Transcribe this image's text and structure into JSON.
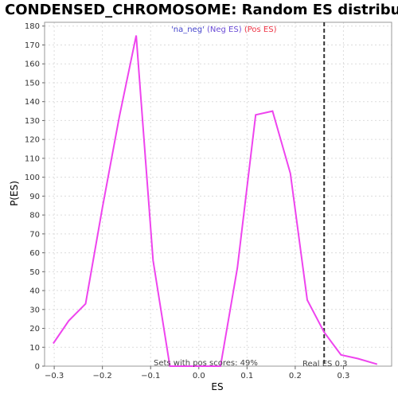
{
  "chart_data": {
    "type": "line",
    "title": "CONDENSED_CHROMOSOME: Random ES distribution",
    "xlabel": "ES",
    "ylabel": "P(ES)",
    "xlim": [
      -0.32,
      0.4
    ],
    "ylim": [
      0,
      182
    ],
    "xticks": [
      -0.3,
      -0.2,
      -0.1,
      0.0,
      0.1,
      0.2,
      0.3
    ],
    "xtick_labels": [
      "−0.3",
      "−0.2",
      "−0.1",
      "0.0",
      "0.1",
      "0.2",
      "0.3"
    ],
    "yticks": [
      0,
      10,
      20,
      30,
      40,
      50,
      60,
      70,
      80,
      90,
      100,
      110,
      120,
      130,
      140,
      150,
      160,
      170,
      180
    ],
    "grid": true,
    "legend": {
      "placement": "top-center",
      "entries": [
        {
          "label": "'na_neg'",
          "color": "#4444cc"
        },
        {
          "label": "(Neg ES)",
          "color": "#6a4bd6"
        },
        {
          "label": "(Pos ES)",
          "color": "#ee3344"
        }
      ]
    },
    "series": [
      {
        "color": "#ee44ee",
        "x": [
          -0.302,
          -0.27,
          -0.235,
          -0.2,
          -0.165,
          -0.13,
          -0.095,
          -0.06,
          -0.025,
          0.01,
          0.045,
          0.08,
          0.118,
          0.153,
          0.19,
          0.225,
          0.26,
          0.295,
          0.33,
          0.37
        ],
        "y": [
          12,
          24,
          33,
          84,
          132,
          175,
          56,
          0,
          0,
          0,
          0,
          52,
          133,
          135,
          102,
          35,
          18,
          6,
          4,
          1
        ]
      }
    ],
    "reference_line": {
      "x": 0.26,
      "style": "dashed",
      "color": "#333333"
    },
    "annotations": [
      {
        "text": "Sets with pos scores: 49%"
      },
      {
        "text": "Real ES 0.3"
      }
    ]
  }
}
